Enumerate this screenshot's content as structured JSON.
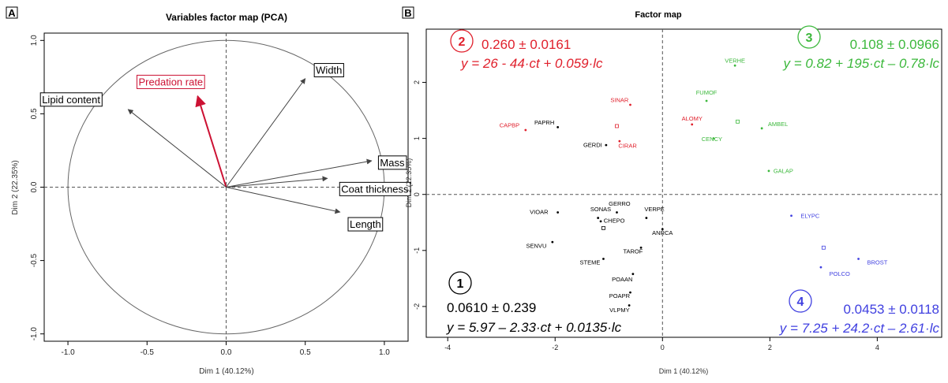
{
  "panels": {
    "A": {
      "letter": "A",
      "title": "Variables factor map (PCA)",
      "xlabel": "Dim 1 (40.12%)",
      "ylabel": "Dim 2 (22.35%)",
      "x_ticks": [
        "-1.0",
        "-0.5",
        "0.0",
        "0.5",
        "1.0"
      ],
      "y_ticks": [
        "-1.0",
        "-0.5",
        "0.0",
        "0.5",
        "1.0"
      ]
    },
    "B": {
      "letter": "B",
      "title": "Factor map",
      "xlabel": "Dim 1 (40.12%)",
      "ylabel": "Dim 2 (22.35%)",
      "x_ticks": [
        "-4",
        "-2",
        "0",
        "2",
        "4"
      ],
      "y_ticks": [
        "-2",
        "-1",
        "0",
        "1",
        "2"
      ]
    }
  },
  "colors": {
    "group1": "#000000",
    "group2": "#e0202c",
    "group3": "#3cb83c",
    "group4": "#4040e0",
    "axis": "#444444"
  },
  "chart_data": [
    {
      "type": "scatter",
      "subtype": "correlation-circle",
      "title": "Variables factor map (PCA)",
      "xlabel": "Dim 1 (40.12%)",
      "ylabel": "Dim 2 (22.35%)",
      "xlim": [
        -1.15,
        1.15
      ],
      "ylim": [
        -1.05,
        1.05
      ],
      "grid": false,
      "vectors": [
        {
          "name": "Width",
          "x": 0.5,
          "y": 0.74,
          "color": "#444444",
          "lx": 0.65,
          "ly": 0.8
        },
        {
          "name": "Predation rate",
          "x": -0.18,
          "y": 0.62,
          "color": "#cc1133",
          "lx": -0.35,
          "ly": 0.72
        },
        {
          "name": "Lipid content",
          "x": -0.62,
          "y": 0.53,
          "color": "#444444",
          "lx": -0.98,
          "ly": 0.6
        },
        {
          "name": "Mass",
          "x": 0.92,
          "y": 0.18,
          "color": "#444444",
          "lx": 1.05,
          "ly": 0.17
        },
        {
          "name": "Coat thickness",
          "x": 0.64,
          "y": 0.06,
          "color": "#444444",
          "lx": 0.94,
          "ly": -0.01
        },
        {
          "name": "Length",
          "x": 0.72,
          "y": -0.17,
          "color": "#444444",
          "lx": 0.88,
          "ly": -0.25
        }
      ]
    },
    {
      "type": "scatter",
      "title": "Factor map",
      "xlabel": "Dim 1 (40.12%)",
      "ylabel": "Dim 2 (22.35%)",
      "xlim": [
        -4.4,
        5.2
      ],
      "ylim": [
        -2.55,
        2.95
      ],
      "grid": false,
      "points": [
        {
          "label": "CAPBP",
          "x": -2.55,
          "y": 1.15,
          "group": 2,
          "lx": -2.85,
          "ly": 1.2
        },
        {
          "label": "PAPRH",
          "x": -1.95,
          "y": 1.2,
          "group": 1,
          "lx": -2.2,
          "ly": 1.25
        },
        {
          "label": "SINAR",
          "x": -0.6,
          "y": 1.6,
          "group": 2,
          "lx": -0.8,
          "ly": 1.65
        },
        {
          "label": "GERDI",
          "x": -1.05,
          "y": 0.88,
          "group": 1,
          "lx": -1.3,
          "ly": 0.85
        },
        {
          "label": "CIRAR",
          "x": -0.8,
          "y": 0.95,
          "group": 2,
          "lx": -0.65,
          "ly": 0.83
        },
        {
          "label": "VIOAR",
          "x": -1.95,
          "y": -0.32,
          "group": 1,
          "lx": -2.3,
          "ly": -0.35
        },
        {
          "label": "SONAS",
          "x": -1.2,
          "y": -0.42,
          "group": 1,
          "lx": -1.15,
          "ly": -0.3
        },
        {
          "label": "GERRO",
          "x": -0.85,
          "y": -0.32,
          "group": 1,
          "lx": -0.8,
          "ly": -0.2
        },
        {
          "label": "CHEPO",
          "x": -1.15,
          "y": -0.48,
          "group": 1,
          "lx": -0.9,
          "ly": -0.5
        },
        {
          "label": "VERPE",
          "x": -0.3,
          "y": -0.42,
          "group": 1,
          "lx": -0.15,
          "ly": -0.3
        },
        {
          "label": "ANRCA",
          "x": 0.0,
          "y": -0.62,
          "group": 1,
          "lx": 0.0,
          "ly": -0.72
        },
        {
          "label": "SENVU",
          "x": -2.05,
          "y": -0.85,
          "group": 1,
          "lx": -2.35,
          "ly": -0.95
        },
        {
          "label": "TAROF",
          "x": -0.4,
          "y": -0.95,
          "group": 1,
          "lx": -0.55,
          "ly": -1.05
        },
        {
          "label": "STEME",
          "x": -1.1,
          "y": -1.15,
          "group": 1,
          "lx": -1.35,
          "ly": -1.25
        },
        {
          "label": "POAAN",
          "x": -0.55,
          "y": -1.42,
          "group": 1,
          "lx": -0.75,
          "ly": -1.55
        },
        {
          "label": "POAPR",
          "x": -0.6,
          "y": -1.75,
          "group": 1,
          "lx": -0.8,
          "ly": -1.85
        },
        {
          "label": "VLPMY",
          "x": -0.62,
          "y": -1.98,
          "group": 1,
          "lx": -0.8,
          "ly": -2.1
        },
        {
          "label": "VERHE",
          "x": 1.35,
          "y": 2.3,
          "group": 3,
          "lx": 1.35,
          "ly": 2.35
        },
        {
          "label": "FUMOF",
          "x": 0.82,
          "y": 1.67,
          "group": 3,
          "lx": 0.82,
          "ly": 1.78
        },
        {
          "label": "ALOMY",
          "x": 0.55,
          "y": 1.25,
          "group": 2,
          "lx": 0.55,
          "ly": 1.32
        },
        {
          "label": "AMBEL",
          "x": 1.85,
          "y": 1.18,
          "group": 3,
          "lx": 2.15,
          "ly": 1.22
        },
        {
          "label": "CENCY",
          "x": 0.95,
          "y": 1.0,
          "group": 3,
          "lx": 0.92,
          "ly": 0.95
        },
        {
          "label": "GALAP",
          "x": 1.98,
          "y": 0.42,
          "group": 3,
          "lx": 2.25,
          "ly": 0.38
        },
        {
          "label": "ELYPC",
          "x": 2.4,
          "y": -0.38,
          "group": 4,
          "lx": 2.75,
          "ly": -0.42
        },
        {
          "label": "BROST",
          "x": 3.65,
          "y": -1.15,
          "group": 4,
          "lx": 4.0,
          "ly": -1.25
        },
        {
          "label": "POLCO",
          "x": 2.95,
          "y": -1.3,
          "group": 4,
          "lx": 3.3,
          "ly": -1.45
        }
      ],
      "centroids": [
        {
          "x": -1.1,
          "y": -0.6,
          "group": 1
        },
        {
          "x": -0.85,
          "y": 1.22,
          "group": 2
        },
        {
          "x": 1.4,
          "y": 1.3,
          "group": 3
        },
        {
          "x": 3.0,
          "y": -0.95,
          "group": 4
        }
      ],
      "groups": [
        {
          "number": "1",
          "stat": "0.0610 ± 0.239",
          "equation": "y = 5.97 – 2.33·ct + 0.0135·lc",
          "color": "#000000"
        },
        {
          "number": "2",
          "stat": "0.260 ± 0.0161",
          "equation": "y = 26 - 44·ct + 0.059·lc",
          "color": "#e0202c"
        },
        {
          "number": "3",
          "stat": "0.108 ± 0.0966",
          "equation": "y = 0.82 + 195·ct – 0.78·lc",
          "color": "#3cb83c"
        },
        {
          "number": "4",
          "stat": "0.0453 ± 0.0118",
          "equation": "y = 7.25 + 24.2·ct – 2.61·lc",
          "color": "#4040e0"
        }
      ]
    }
  ]
}
